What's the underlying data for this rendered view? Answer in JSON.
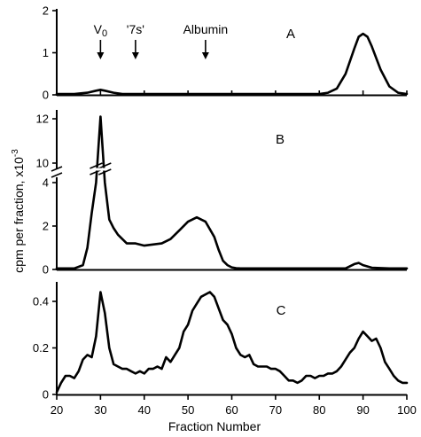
{
  "chart_data": {
    "type": "line",
    "xlabel": "Fraction Number",
    "ylabel": "cpm per fraction, x10",
    "ylabel_exponent": "-3",
    "xlim": [
      20,
      100
    ],
    "xticks": [
      20,
      30,
      40,
      50,
      60,
      70,
      80,
      90,
      100
    ],
    "xtick_labels": [
      "20",
      "30",
      "40",
      "50",
      "60",
      "70",
      "80",
      "90",
      "100"
    ],
    "markers": [
      {
        "label": "V",
        "subscript": "0",
        "x": 30
      },
      {
        "label": "'7s'",
        "x": 38
      },
      {
        "label": "Albumin",
        "x": 54
      }
    ],
    "panels": [
      {
        "label": "A",
        "ylim": [
          0,
          2
        ],
        "yticks": [
          0,
          1,
          2
        ],
        "ytick_labels": [
          "0",
          "1",
          "2"
        ],
        "x": [
          20,
          24,
          27,
          29,
          30,
          31,
          33,
          35,
          40,
          50,
          60,
          70,
          80,
          82,
          84,
          86,
          88,
          89,
          90,
          91,
          92,
          94,
          96,
          98,
          100
        ],
        "y": [
          0.02,
          0.02,
          0.05,
          0.1,
          0.12,
          0.1,
          0.05,
          0.02,
          0.02,
          0.02,
          0.02,
          0.02,
          0.02,
          0.05,
          0.15,
          0.5,
          1.1,
          1.38,
          1.45,
          1.38,
          1.15,
          0.6,
          0.2,
          0.05,
          0.02
        ]
      },
      {
        "label": "B",
        "broken_axis": true,
        "ylim_lower": [
          0,
          4
        ],
        "ylim_upper": [
          10,
          12
        ],
        "yticks": [
          0,
          2,
          4,
          10,
          12
        ],
        "ytick_labels": [
          "0",
          "2",
          "4",
          "10",
          "12"
        ],
        "x": [
          20,
          24,
          26,
          27,
          28,
          29,
          30,
          31,
          32,
          33,
          34,
          36,
          38,
          40,
          42,
          44,
          46,
          48,
          50,
          52,
          54,
          56,
          57,
          58,
          59,
          60,
          61,
          62,
          64,
          70,
          80,
          86,
          88,
          89,
          90,
          92,
          96,
          100
        ],
        "y": [
          0.05,
          0.05,
          0.2,
          1.0,
          2.6,
          4.6,
          12.1,
          4.6,
          2.3,
          1.9,
          1.6,
          1.2,
          1.2,
          1.1,
          1.15,
          1.2,
          1.4,
          1.8,
          2.2,
          2.4,
          2.2,
          1.5,
          0.9,
          0.4,
          0.2,
          0.1,
          0.06,
          0.05,
          0.05,
          0.05,
          0.05,
          0.05,
          0.25,
          0.3,
          0.2,
          0.08,
          0.05,
          0.05
        ]
      },
      {
        "label": "C",
        "ylim": [
          0,
          0.5
        ],
        "yticks": [
          0.4,
          0.2,
          0
        ],
        "ytick_labels": [
          "0.4",
          "0.2",
          "0"
        ],
        "x": [
          20,
          21,
          22,
          23,
          24,
          25,
          26,
          27,
          28,
          29,
          30,
          31,
          32,
          33,
          34,
          35,
          36,
          37,
          38,
          39,
          40,
          41,
          42,
          43,
          44,
          45,
          46,
          47,
          48,
          49,
          50,
          51,
          52,
          53,
          54,
          55,
          56,
          57,
          58,
          59,
          60,
          61,
          62,
          63,
          64,
          65,
          66,
          67,
          68,
          69,
          70,
          71,
          72,
          73,
          74,
          75,
          76,
          77,
          78,
          79,
          80,
          81,
          82,
          83,
          84,
          85,
          86,
          87,
          88,
          89,
          90,
          91,
          92,
          93,
          94,
          95,
          96,
          97,
          98,
          99,
          100
        ],
        "y": [
          0.01,
          0.05,
          0.08,
          0.08,
          0.07,
          0.1,
          0.15,
          0.17,
          0.16,
          0.25,
          0.44,
          0.35,
          0.2,
          0.13,
          0.12,
          0.11,
          0.11,
          0.1,
          0.09,
          0.1,
          0.09,
          0.11,
          0.11,
          0.12,
          0.11,
          0.16,
          0.14,
          0.17,
          0.2,
          0.27,
          0.3,
          0.36,
          0.39,
          0.42,
          0.43,
          0.44,
          0.42,
          0.37,
          0.32,
          0.3,
          0.26,
          0.2,
          0.17,
          0.16,
          0.17,
          0.13,
          0.12,
          0.12,
          0.12,
          0.11,
          0.11,
          0.1,
          0.08,
          0.06,
          0.06,
          0.05,
          0.06,
          0.08,
          0.08,
          0.07,
          0.08,
          0.08,
          0.09,
          0.09,
          0.1,
          0.12,
          0.15,
          0.18,
          0.2,
          0.24,
          0.27,
          0.25,
          0.23,
          0.24,
          0.2,
          0.14,
          0.11,
          0.08,
          0.06,
          0.05,
          0.05
        ]
      }
    ]
  }
}
